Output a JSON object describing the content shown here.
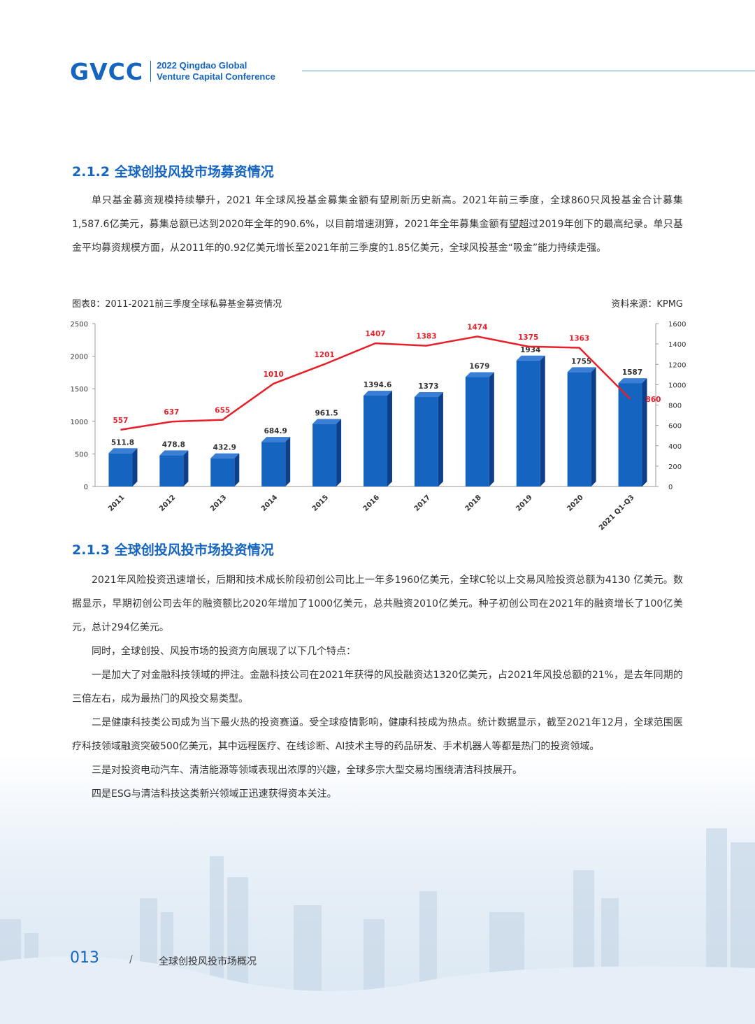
{
  "header": {
    "logo": "GVCC",
    "subtitle_line1": "2022 Qingdao Global",
    "subtitle_line2": "Venture Capital Conference"
  },
  "section1": {
    "heading": "2.1.2 全球创投风投市场募资情况",
    "paragraph": "单只基金募资规模持续攀升，2021 年全球风投基金募集金额有望刷新历史新高。2021年前三季度，全球860只风投基金合计募集1,587.6亿美元，募集总额已达到2020年全年的90.6%，以目前增速测算，2021年全年募集金额有望超过2019年创下的最高纪录。单只基金平均募资规模方面，从2011年的0.92亿美元增长至2021年前三季度的1.85亿美元，全球风投基金“吸金”能力持续走强。"
  },
  "figure": {
    "caption": "图表8：2011-2021前三季度全球私募基金募资情况",
    "source": "资料来源：KPMG"
  },
  "chart_data": {
    "type": "bar",
    "categories": [
      "2011",
      "2012",
      "2013",
      "2014",
      "2015",
      "2016",
      "2017",
      "2018",
      "2019",
      "2020",
      "2021 Q1-Q3"
    ],
    "series": [
      {
        "values": [
          511.8,
          478.8,
          432.9,
          684.9,
          961.5,
          1394.6,
          1373,
          1679,
          1934,
          1755,
          1587
        ],
        "value_labels": [
          "511.8",
          "478.8",
          "432.9",
          "684.9",
          "961.5",
          "1394.6",
          "1373",
          "1679",
          "1934",
          "1755",
          "1587"
        ],
        "color": "#1565c0",
        "axis": "left",
        "kind": "bar"
      },
      {
        "values": [
          557,
          637,
          655,
          1010,
          1201,
          1407,
          1383,
          1474,
          1375,
          1363,
          860
        ],
        "value_labels": [
          "557",
          "637",
          "655",
          "1010",
          "1201",
          "1407",
          "1383",
          "1474",
          "1375",
          "1363",
          "860"
        ],
        "color": "#e8202a",
        "axis": "right",
        "kind": "line"
      }
    ],
    "yleft_ticks": [
      "2500",
      "2000",
      "1500",
      "1000",
      "500",
      "0"
    ],
    "yleft_lim": [
      0,
      2500
    ],
    "yright_ticks": [
      "1600",
      "1400",
      "1200",
      "1000",
      "800",
      "600",
      "400",
      "200",
      "0"
    ],
    "yright_lim": [
      0,
      1600
    ],
    "grid": false
  },
  "section2": {
    "heading": "2.1.3 全球创投风投市场投资情况",
    "paragraphs": [
      "2021年风险投资迅速增长，后期和技术成长阶段初创公司比上一年多1960亿美元，全球C轮以上交易风险投资总额为4130 亿美元。数据显示，早期初创公司去年的融资额比2020年增加了1000亿美元，总共融资2010亿美元。种子初创公司在2021年的融资增长了100亿美元，总计294亿美元。",
      "同时，全球创投、风投市场的投资方向展现了以下几个特点：",
      "一是加大了对金融科技领域的押注。金融科技公司在2021年获得的风投融资达1320亿美元，占2021年风投总额的21%，是去年同期的三倍左右，成为最热门的风投交易类型。",
      "二是健康科技类公司成为当下最火热的投资赛道。受全球疫情影响，健康科技成为热点。统计数据显示，截至2021年12月，全球范围医疗科技领域融资突破500亿美元，其中远程医疗、在线诊断、AI技术主导的药品研发、手术机器人等都是热门的投资领域。",
      "三是对投资电动汽车、清洁能源等领域表现出浓厚的兴趣，全球多宗大型交易均围绕清洁科技展开。",
      "四是ESG与清洁科技这类新兴领域正迅速获得资本关注。"
    ]
  },
  "footer": {
    "page_number": "013",
    "separator": "/",
    "title": "全球创投风投市场概况"
  }
}
